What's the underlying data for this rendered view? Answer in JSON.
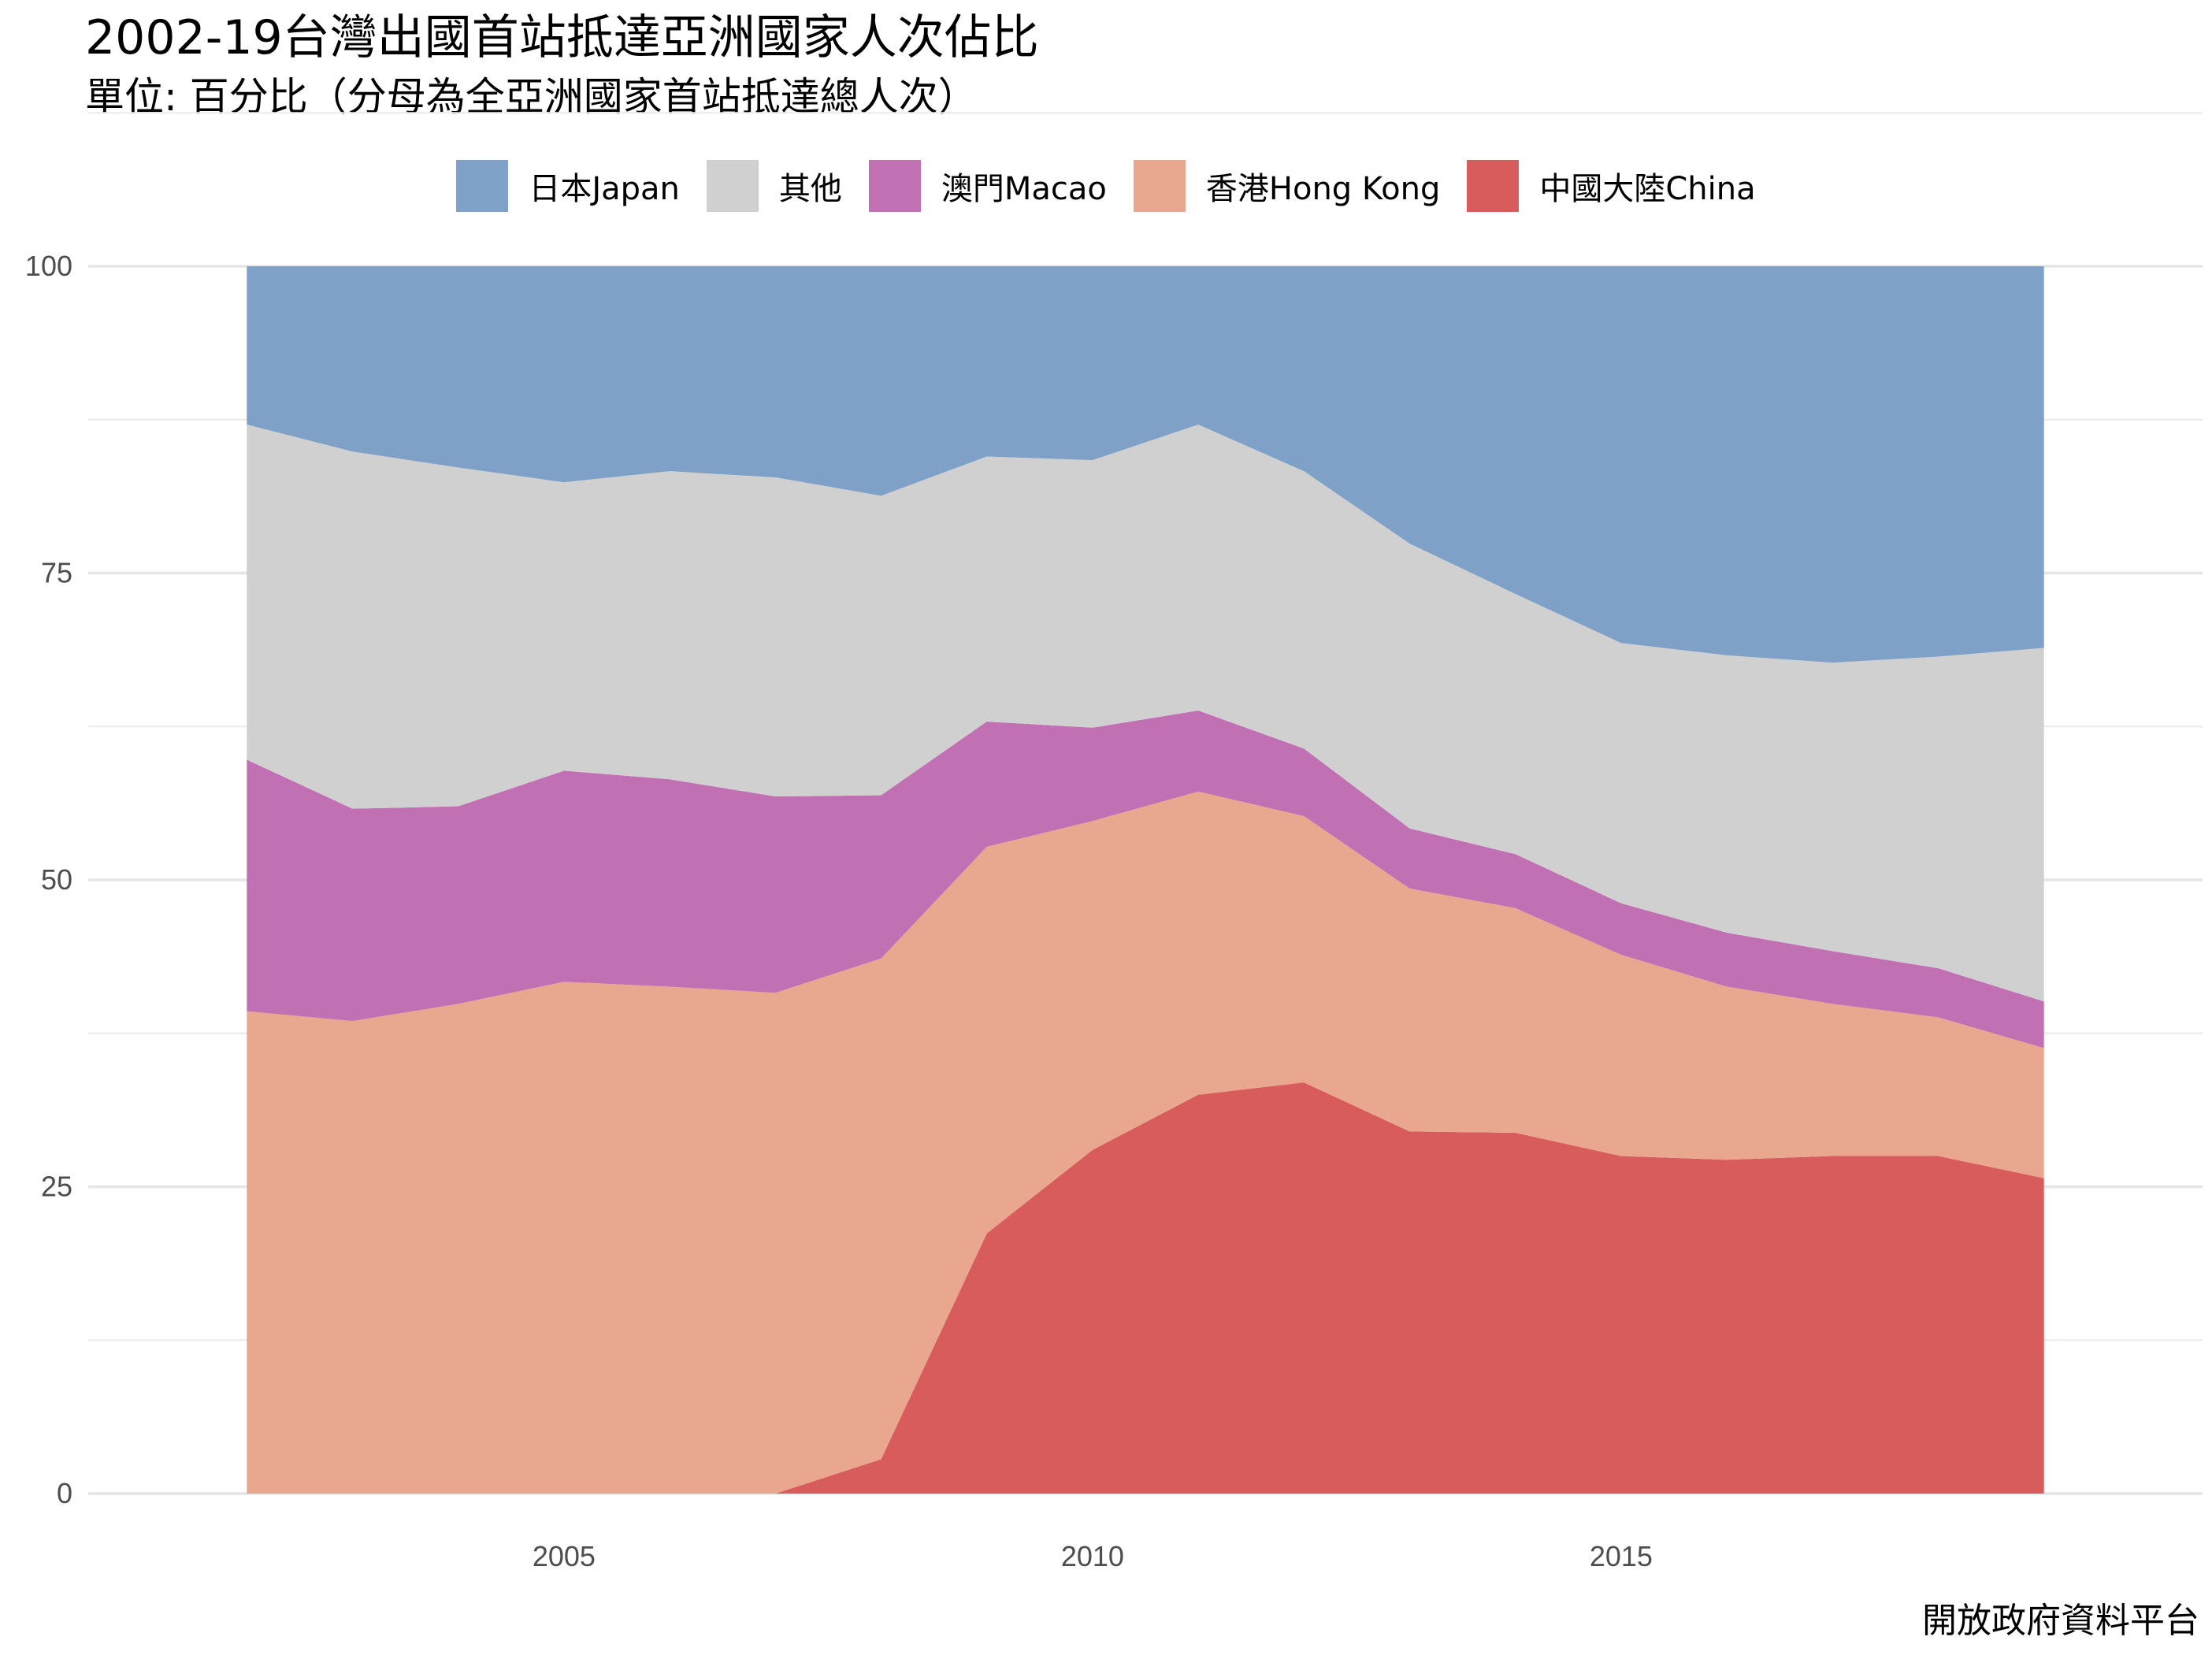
{
  "title": "2002-19台灣出國首站抵達亞洲國家人次佔比",
  "subtitle": "單位: 百分比（分母為全亞洲國家首站抵達總人次）",
  "caption": "開放政府資料平台",
  "chart_data": {
    "type": "area",
    "stacked": true,
    "x": [
      2002,
      2003,
      2004,
      2005,
      2006,
      2007,
      2008,
      2009,
      2010,
      2011,
      2012,
      2013,
      2014,
      2015,
      2016,
      2017,
      2018,
      2019
    ],
    "series": [
      {
        "name": "中國大陸China",
        "color": "#d95c5c",
        "values": [
          0,
          0,
          0,
          0,
          0,
          0,
          2.8,
          21.2,
          28.0,
          32.5,
          33.5,
          29.5,
          29.4,
          27.5,
          27.2,
          27.5,
          27.5,
          25.7
        ]
      },
      {
        "name": "香港Hong Kong",
        "color": "#e8a78e",
        "values": [
          39.3,
          38.5,
          39.9,
          41.7,
          41.3,
          40.8,
          40.8,
          31.5,
          26.8,
          24.7,
          21.7,
          19.8,
          18.3,
          16.4,
          14.1,
          12.4,
          11.3,
          10.6
        ]
      },
      {
        "name": "澳門Macao",
        "color": "#c171b3",
        "values": [
          20.5,
          17.3,
          16.1,
          17.2,
          16.9,
          16.0,
          13.3,
          10.2,
          7.6,
          6.6,
          5.5,
          4.9,
          4.4,
          4.2,
          4.4,
          4.3,
          4.0,
          3.8
        ]
      },
      {
        "name": "其他",
        "color": "#d0d0d0",
        "values": [
          27.3,
          29.1,
          27.6,
          23.5,
          25.1,
          26.0,
          24.4,
          21.6,
          21.8,
          23.3,
          22.6,
          23.2,
          21.2,
          21.2,
          22.6,
          23.5,
          25.4,
          28.8
        ]
      },
      {
        "name": "日本Japan",
        "color": "#7fa1c7",
        "values": [
          12.9,
          15.1,
          16.4,
          17.6,
          16.7,
          17.2,
          18.7,
          15.5,
          15.8,
          12.9,
          16.7,
          22.6,
          26.7,
          30.7,
          31.7,
          32.3,
          31.8,
          31.1
        ]
      }
    ],
    "legend_order": [
      "日本Japan",
      "其他",
      "澳門Macao",
      "香港Hong Kong",
      "中國大陸China"
    ],
    "xlim": [
      2000.5,
      2020.5
    ],
    "ylim": [
      0,
      100
    ],
    "x_ticks": [
      2005,
      2010,
      2015
    ],
    "x_tick_labels": [
      "2005",
      "2010",
      "2015"
    ],
    "y_ticks": [
      0,
      25,
      50,
      75,
      100
    ],
    "y_tick_labels": [
      "0",
      "25",
      "50",
      "75",
      "100"
    ],
    "xlabel": "",
    "ylabel": "",
    "grid": true,
    "legend_position": "top"
  }
}
